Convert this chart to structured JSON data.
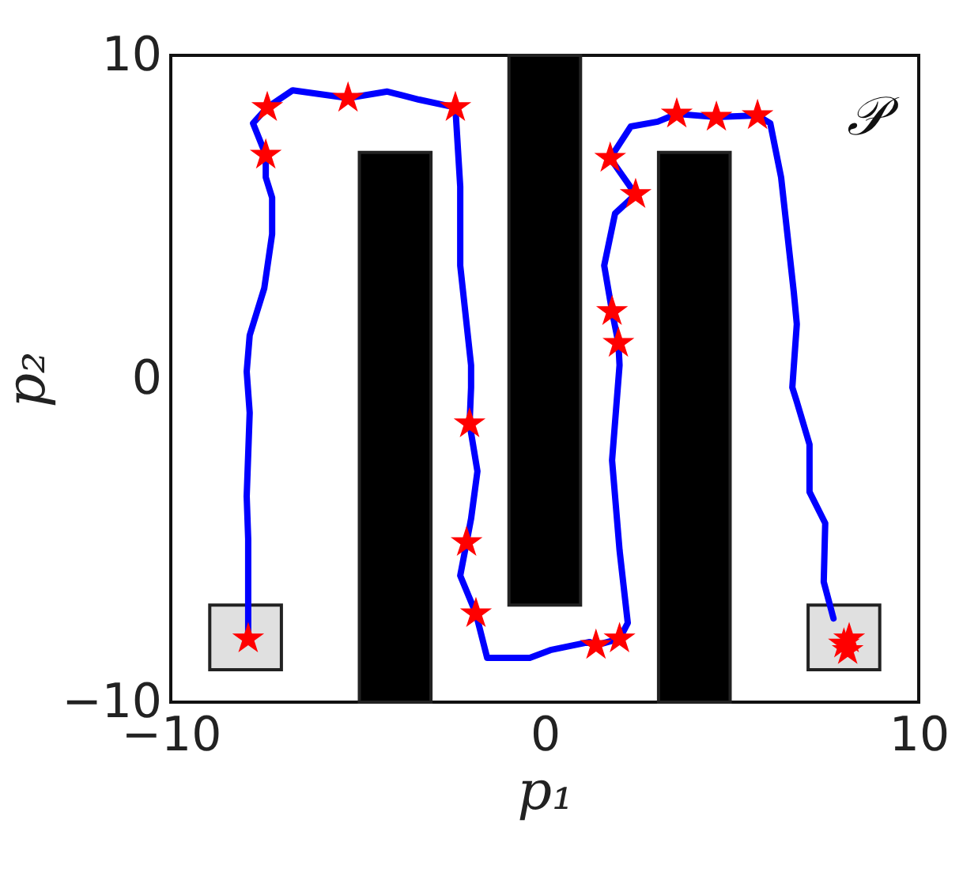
{
  "chart_data": {
    "type": "line",
    "xlabel": "p₁",
    "ylabel": "p₂",
    "annotations": [
      "𝒫"
    ],
    "xlim": [
      -10,
      10
    ],
    "ylim": [
      -10,
      10
    ],
    "xticks": [
      -10,
      0,
      10
    ],
    "yticks": [
      -10,
      0,
      10
    ],
    "series": [
      {
        "type": "bar",
        "color": "#000000",
        "x": [
          -4,
          0,
          4
        ],
        "base": [
          -10,
          -7,
          -10
        ],
        "values": [
          17,
          17,
          17
        ]
      },
      {
        "type": "bar",
        "color": "#e0e0e0",
        "x": [
          -8,
          8
        ],
        "base": [
          -9,
          -9
        ],
        "values": [
          2,
          2
        ]
      },
      {
        "color": "#0000ff",
        "x": [
          -7.93,
          -7.93,
          -7.97,
          -7.89,
          -7.97,
          -7.89,
          -7.5,
          -7.29,
          -7.29,
          -7.46,
          -7.46,
          -7.8,
          -7.42,
          -6.74,
          -5.26,
          -4.21,
          -3.36,
          -2.39,
          -2.26,
          -2.26,
          -1.97,
          -1.97,
          -2.01,
          -1.8,
          -1.97,
          -2.09,
          -2.26,
          -1.84,
          -1.54,
          -0.4,
          0.15,
          1.2,
          1.37,
          2.0,
          2.22,
          2.0,
          1.8,
          2.0,
          1.97,
          1.8,
          1.59,
          1.88,
          2.43,
          1.75,
          2.3,
          3.02,
          3.53,
          4.59,
          5.69,
          6.03,
          6.32,
          6.66,
          6.74,
          6.62,
          6.74,
          7.08,
          7.08,
          7.5,
          7.46,
          7.72
        ],
        "values": [
          -8.04,
          -4.96,
          -3.64,
          -1.05,
          0.22,
          1.34,
          2.8,
          4.47,
          5.6,
          6.23,
          6.92,
          7.9,
          8.39,
          8.92,
          8.68,
          8.88,
          8.63,
          8.39,
          5.94,
          3.5,
          0.42,
          -0.27,
          -1.39,
          -2.86,
          -4.33,
          -5.06,
          -6.09,
          -7.26,
          -8.63,
          -8.63,
          -8.39,
          -8.14,
          -8.24,
          -8.04,
          -7.55,
          -5.3,
          -2.52,
          0.42,
          1.1,
          2.08,
          3.5,
          5.11,
          5.7,
          6.82,
          7.8,
          7.95,
          8.19,
          8.09,
          8.14,
          7.9,
          6.23,
          2.67,
          1.69,
          -0.27,
          -0.71,
          -2.03,
          -3.5,
          -4.47,
          -6.28,
          -7.41
        ]
      },
      {
        "type": "scatter",
        "color": "#ff0000",
        "marker": "star",
        "x": [
          -7.93,
          -7.46,
          -7.42,
          -5.26,
          -2.39,
          -2.01,
          -2.09,
          -1.84,
          1.37,
          2.0,
          1.97,
          1.8,
          2.43,
          1.75,
          3.53,
          4.59,
          5.69,
          8.14,
          8.1,
          8.0
        ],
        "values": [
          -8.04,
          6.92,
          8.39,
          8.68,
          8.39,
          -1.39,
          -5.06,
          -7.26,
          -8.24,
          -8.04,
          1.1,
          2.08,
          5.7,
          6.82,
          8.19,
          8.09,
          8.14,
          -8.04,
          -8.4,
          -8.2
        ]
      }
    ]
  }
}
